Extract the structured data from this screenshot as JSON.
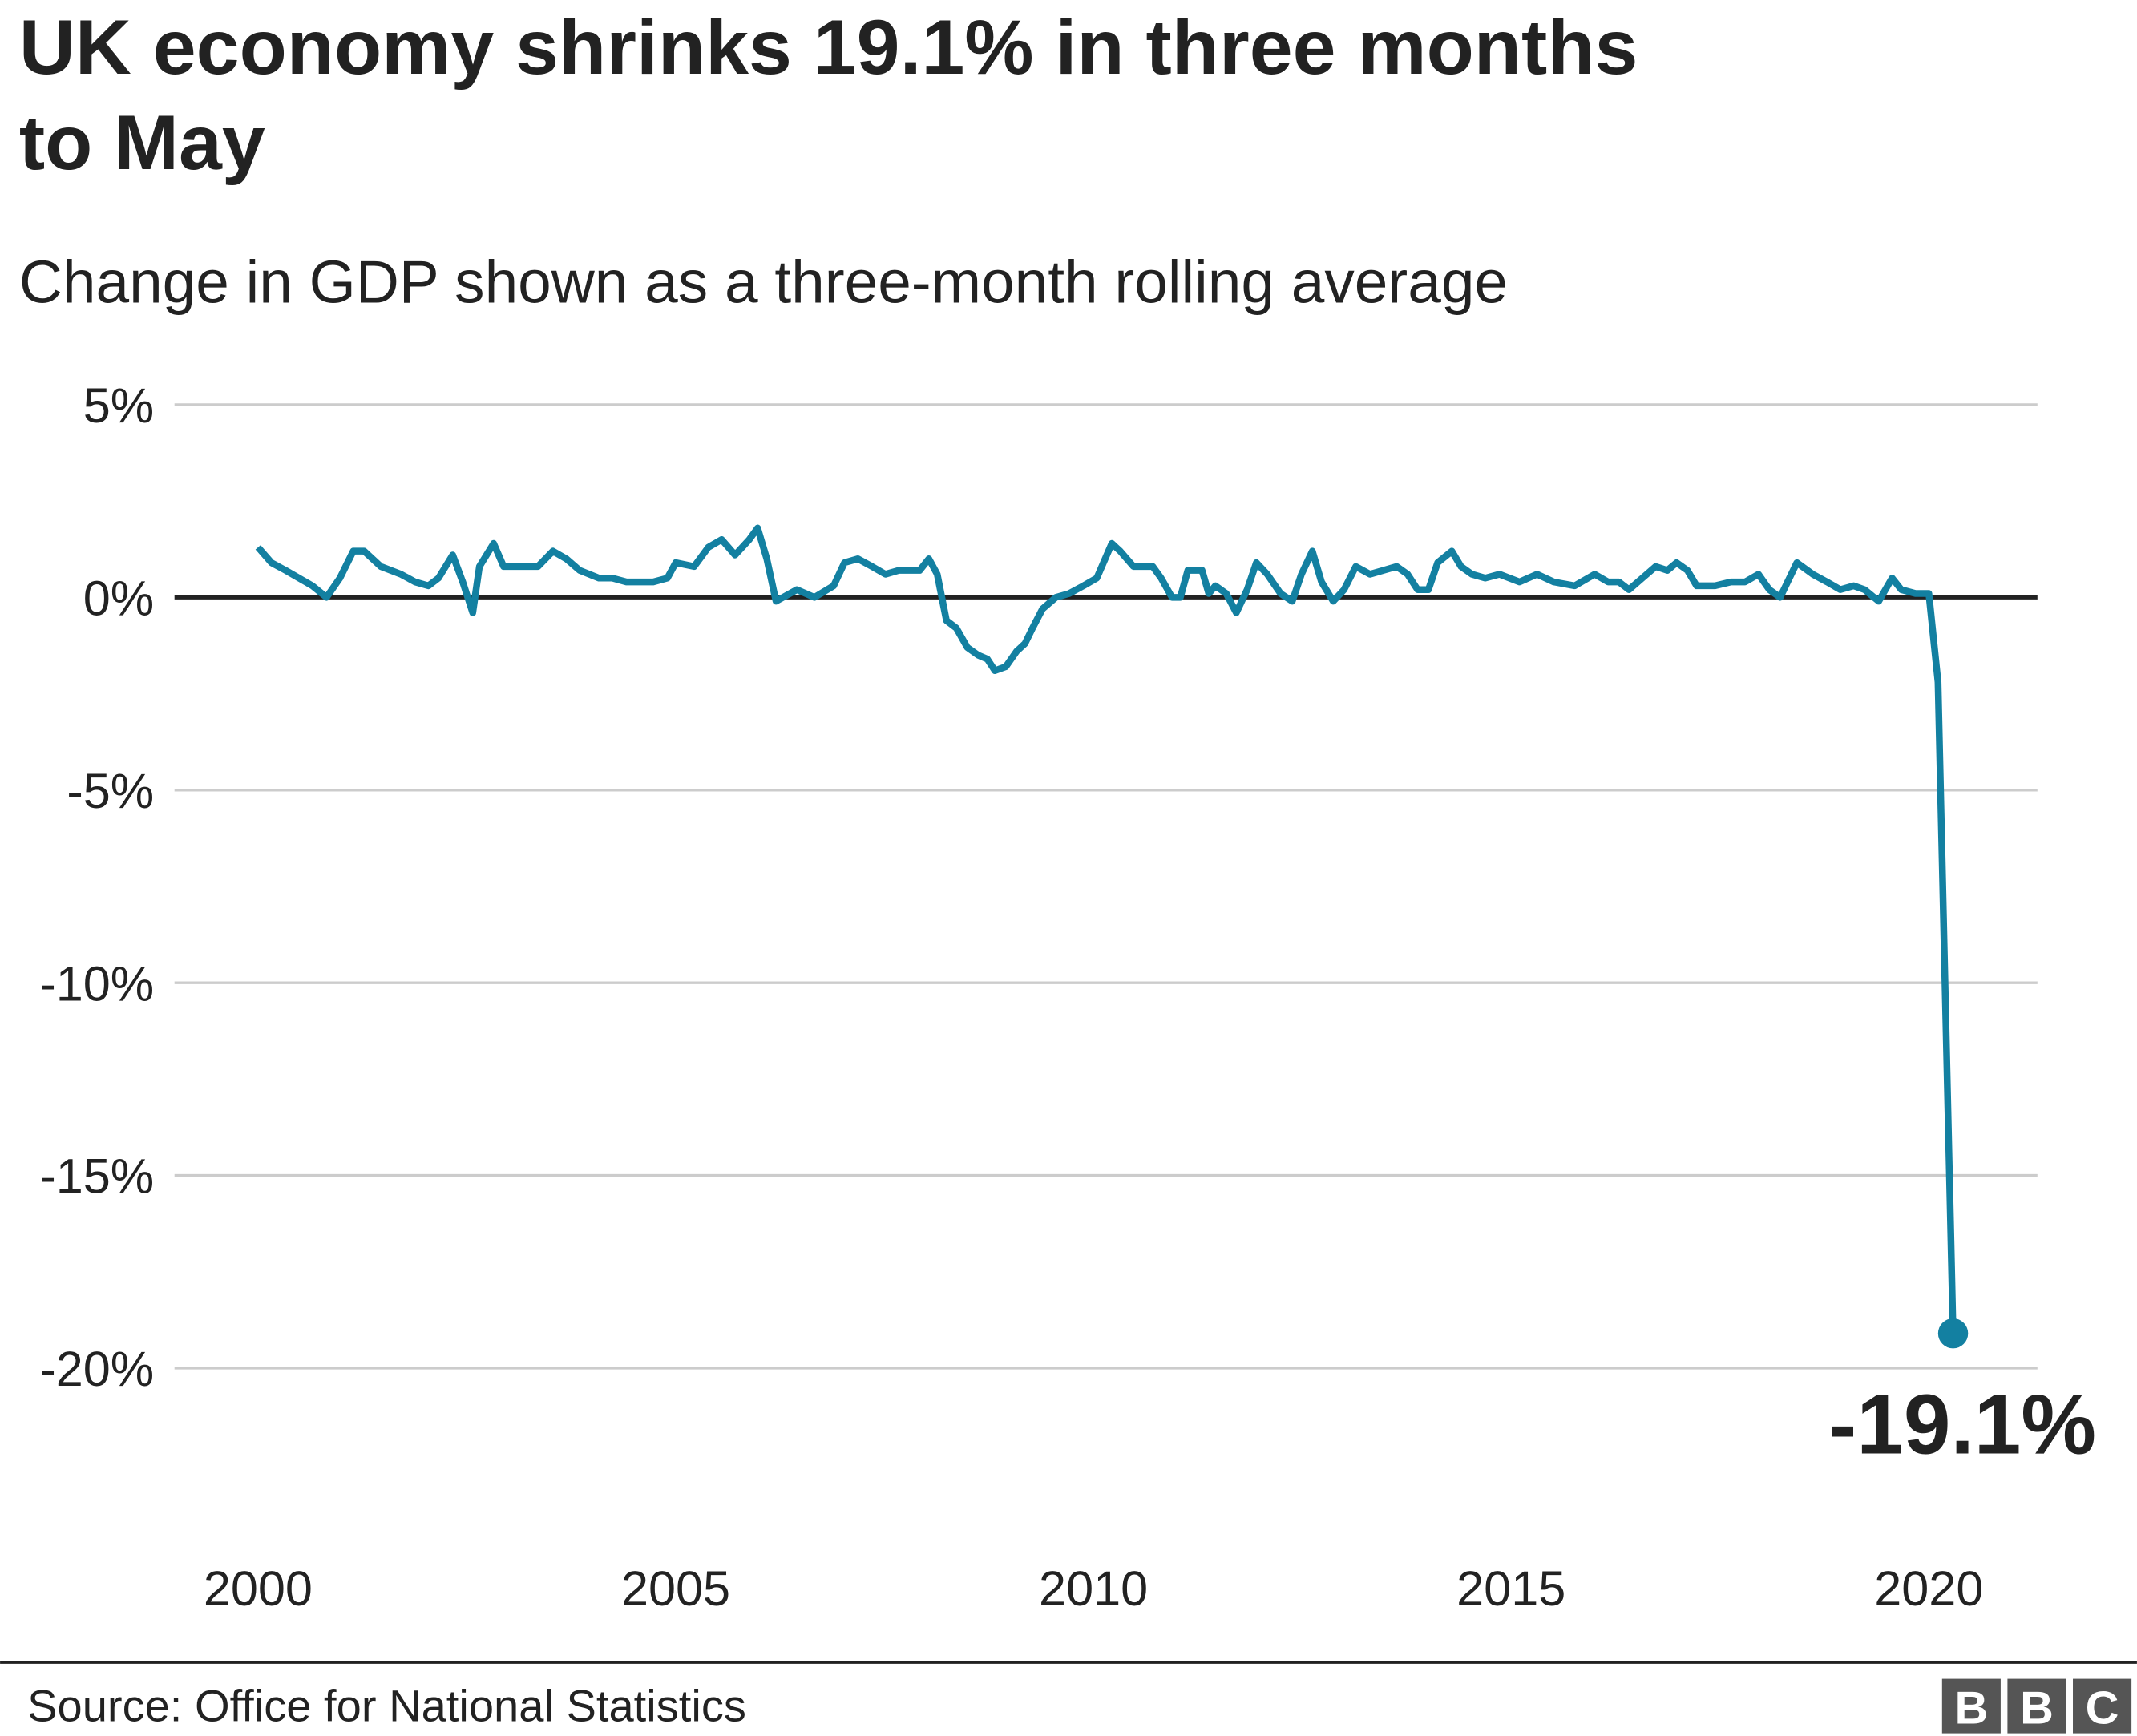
{
  "chart_data": {
    "type": "line",
    "title": "UK economy shrinks 19.1% in three months to May",
    "subtitle": "Change in GDP shown as a three-month rolling average",
    "source": "Source: Office for National Statistics",
    "logo": [
      "B",
      "B",
      "C"
    ],
    "xlim": [
      1999,
      2021.3
    ],
    "xticks": [
      2000,
      2005,
      2010,
      2015,
      2020
    ],
    "ylim": [
      -20,
      5
    ],
    "yticks": [
      {
        "value": 5,
        "label": "5%"
      },
      {
        "value": 0,
        "label": "0%"
      },
      {
        "value": -5,
        "label": "-5%"
      },
      {
        "value": -10,
        "label": "-10%"
      },
      {
        "value": -15,
        "label": "-15%"
      },
      {
        "value": -20,
        "label": "-20%"
      }
    ],
    "grid": true,
    "x": [
      2000.0,
      2000.16,
      2000.33,
      2000.49,
      2000.65,
      2000.82,
      2000.98,
      2001.14,
      2001.27,
      2001.47,
      2001.71,
      2001.88,
      2002.04,
      2002.16,
      2002.33,
      2002.45,
      2002.57,
      2002.65,
      2002.82,
      2002.94,
      2003.18,
      2003.35,
      2003.53,
      2003.69,
      2003.85,
      2004.08,
      2004.24,
      2004.41,
      2004.73,
      2004.9,
      2005.0,
      2005.22,
      2005.39,
      2005.55,
      2005.71,
      2005.88,
      2005.98,
      2006.09,
      2006.2,
      2006.45,
      2006.66,
      2006.89,
      2007.02,
      2007.18,
      2007.35,
      2007.51,
      2007.67,
      2007.92,
      2008.03,
      2008.13,
      2008.24,
      2008.36,
      2008.49,
      2008.62,
      2008.73,
      2008.82,
      2008.95,
      2009.08,
      2009.18,
      2009.27,
      2009.39,
      2009.55,
      2009.71,
      2009.88,
      2010.04,
      2010.22,
      2010.32,
      2010.48,
      2010.71,
      2010.81,
      2010.94,
      2011.04,
      2011.13,
      2011.3,
      2011.38,
      2011.46,
      2011.59,
      2011.71,
      2011.84,
      2011.95,
      2012.08,
      2012.24,
      2012.38,
      2012.49,
      2012.62,
      2012.73,
      2012.87,
      2013.0,
      2013.14,
      2013.31,
      2013.47,
      2013.63,
      2013.76,
      2013.88,
      2014.01,
      2014.12,
      2014.29,
      2014.4,
      2014.53,
      2014.69,
      2014.86,
      2015.1,
      2015.31,
      2015.51,
      2015.76,
      2016.0,
      2016.16,
      2016.29,
      2016.41,
      2016.57,
      2016.73,
      2016.87,
      2016.98,
      2017.11,
      2017.22,
      2017.44,
      2017.63,
      2017.8,
      2017.96,
      2018.09,
      2018.22,
      2018.42,
      2018.61,
      2018.78,
      2018.94,
      2019.1,
      2019.23,
      2019.4,
      2019.56,
      2019.67,
      2019.84,
      2020.0,
      2020.11,
      2020.29
    ],
    "series": [
      {
        "color": "#1380a1",
        "values": [
          1.3,
          0.9,
          0.7,
          0.5,
          0.3,
          0.0,
          0.5,
          1.2,
          1.2,
          0.8,
          0.6,
          0.4,
          0.3,
          0.5,
          1.1,
          0.4,
          -0.4,
          0.8,
          1.4,
          0.8,
          0.8,
          0.8,
          1.2,
          1.0,
          0.7,
          0.5,
          0.5,
          0.4,
          0.4,
          0.5,
          0.9,
          0.8,
          1.3,
          1.5,
          1.1,
          1.5,
          1.8,
          1.0,
          -0.1,
          0.2,
          0.0,
          0.3,
          0.9,
          1.0,
          0.8,
          0.6,
          0.7,
          0.7,
          1.0,
          0.6,
          -0.6,
          -0.8,
          -1.3,
          -1.5,
          -1.6,
          -1.9,
          -1.8,
          -1.4,
          -1.2,
          -0.8,
          -0.3,
          0.0,
          0.1,
          0.3,
          0.5,
          1.4,
          1.2,
          0.8,
          0.8,
          0.5,
          0.0,
          0.0,
          0.7,
          0.7,
          0.1,
          0.3,
          0.1,
          -0.4,
          0.2,
          0.9,
          0.6,
          0.1,
          -0.1,
          0.6,
          1.2,
          0.4,
          -0.1,
          0.2,
          0.8,
          0.6,
          0.7,
          0.8,
          0.6,
          0.2,
          0.2,
          0.9,
          1.2,
          0.8,
          0.6,
          0.5,
          0.6,
          0.4,
          0.6,
          0.4,
          0.3,
          0.6,
          0.4,
          0.4,
          0.2,
          0.5,
          0.8,
          0.7,
          0.9,
          0.7,
          0.3,
          0.3,
          0.4,
          0.4,
          0.6,
          0.2,
          0.0,
          0.9,
          0.6,
          0.4,
          0.2,
          0.3,
          0.2,
          -0.1,
          0.5,
          0.2,
          0.1,
          0.1,
          -2.2,
          -19.1
        ]
      }
    ],
    "annotations": [
      {
        "x": 2020.29,
        "y": -19.1,
        "label": "-19.1%"
      }
    ]
  }
}
